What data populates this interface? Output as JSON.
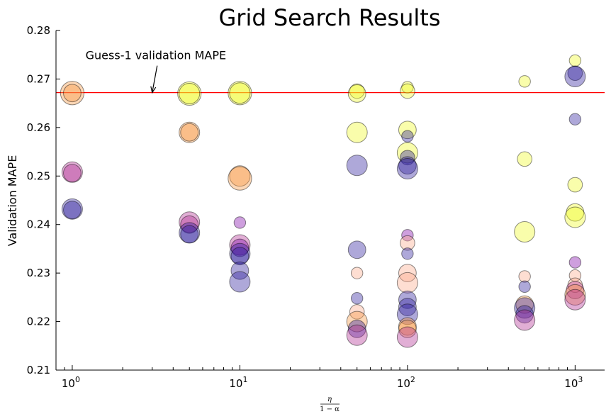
{
  "chart_data": {
    "type": "scatter",
    "title": "Grid Search Results",
    "ylabel": "Validation MAPE",
    "xlabel_num": "η",
    "xlabel_den": "1 − α",
    "xscale": "log",
    "xlim": [
      0.8,
      1500
    ],
    "ylim": [
      0.21,
      0.28
    ],
    "x_ticks": [
      {
        "value": 1,
        "base": "10",
        "exp": "0"
      },
      {
        "value": 10,
        "base": "10",
        "exp": "1"
      },
      {
        "value": 100,
        "base": "10",
        "exp": "2"
      },
      {
        "value": 1000,
        "base": "10",
        "exp": "3"
      }
    ],
    "y_ticks": [
      {
        "value": 0.21,
        "label": "0.21"
      },
      {
        "value": 0.22,
        "label": "0.22"
      },
      {
        "value": 0.23,
        "label": "0.23"
      },
      {
        "value": 0.24,
        "label": "0.24"
      },
      {
        "value": 0.25,
        "label": "0.25"
      },
      {
        "value": 0.26,
        "label": "0.26"
      },
      {
        "value": 0.27,
        "label": "0.27"
      },
      {
        "value": 0.28,
        "label": "0.28"
      }
    ],
    "reference_line": {
      "y": 0.2672,
      "color": "#ff0000"
    },
    "annotation": {
      "text": "Guess-1 validation MAPE",
      "text_x": 1.2,
      "text_y": 0.2748,
      "arrow_x": 3.0,
      "arrow_y": 0.2672
    },
    "colors": {
      "yellow": "#f0f921",
      "orange": "#f89540",
      "magenta": "#b12a90",
      "purple": "#7e03a8",
      "indigo": "#2a1b9a",
      "peach": "#fca98a"
    },
    "points": [
      {
        "x": 1,
        "y": 0.2671,
        "s": 3,
        "c": "orange"
      },
      {
        "x": 1,
        "y": 0.2671,
        "s": 2,
        "c": "orange"
      },
      {
        "x": 1,
        "y": 0.2508,
        "s": 2.5,
        "c": "magenta"
      },
      {
        "x": 1,
        "y": 0.2506,
        "s": 2,
        "c": "magenta"
      },
      {
        "x": 1,
        "y": 0.2432,
        "s": 2.5,
        "c": "indigo"
      },
      {
        "x": 1,
        "y": 0.243,
        "s": 2,
        "c": "indigo"
      },
      {
        "x": 5,
        "y": 0.267,
        "s": 3,
        "c": "yellow"
      },
      {
        "x": 5,
        "y": 0.267,
        "s": 2.5,
        "c": "yellow"
      },
      {
        "x": 5,
        "y": 0.259,
        "s": 2.5,
        "c": "orange"
      },
      {
        "x": 5,
        "y": 0.259,
        "s": 2,
        "c": "orange"
      },
      {
        "x": 5,
        "y": 0.2405,
        "s": 2.5,
        "c": "magenta"
      },
      {
        "x": 5,
        "y": 0.24,
        "s": 2,
        "c": "magenta"
      },
      {
        "x": 5,
        "y": 0.2383,
        "s": 2.5,
        "c": "indigo"
      },
      {
        "x": 5,
        "y": 0.238,
        "s": 2,
        "c": "indigo"
      },
      {
        "x": 10,
        "y": 0.2671,
        "s": 3,
        "c": "yellow"
      },
      {
        "x": 10,
        "y": 0.2671,
        "s": 2.5,
        "c": "yellow"
      },
      {
        "x": 10,
        "y": 0.25,
        "s": 2.5,
        "c": "orange"
      },
      {
        "x": 10,
        "y": 0.2495,
        "s": 3,
        "c": "orange"
      },
      {
        "x": 10,
        "y": 0.2404,
        "s": 1,
        "c": "purple"
      },
      {
        "x": 10,
        "y": 0.2358,
        "s": 2.5,
        "c": "magenta"
      },
      {
        "x": 10,
        "y": 0.2352,
        "s": 2,
        "c": "purple"
      },
      {
        "x": 10,
        "y": 0.234,
        "s": 2.5,
        "c": "indigo"
      },
      {
        "x": 10,
        "y": 0.2335,
        "s": 2,
        "c": "indigo"
      },
      {
        "x": 10,
        "y": 0.2305,
        "s": 2,
        "c": "indigo"
      },
      {
        "x": 10,
        "y": 0.2282,
        "s": 2.5,
        "c": "indigo"
      },
      {
        "x": 50,
        "y": 0.2675,
        "s": 1.5,
        "c": "yellow"
      },
      {
        "x": 50,
        "y": 0.267,
        "s": 2,
        "c": "yellow"
      },
      {
        "x": 50,
        "y": 0.259,
        "s": 2.5,
        "c": "yellow"
      },
      {
        "x": 50,
        "y": 0.2522,
        "s": 2.5,
        "c": "indigo"
      },
      {
        "x": 50,
        "y": 0.2348,
        "s": 2,
        "c": "indigo"
      },
      {
        "x": 50,
        "y": 0.23,
        "s": 1,
        "c": "peach"
      },
      {
        "x": 50,
        "y": 0.2248,
        "s": 1,
        "c": "indigo"
      },
      {
        "x": 50,
        "y": 0.222,
        "s": 1.5,
        "c": "peach"
      },
      {
        "x": 50,
        "y": 0.22,
        "s": 2.5,
        "c": "orange"
      },
      {
        "x": 50,
        "y": 0.2185,
        "s": 2,
        "c": "indigo"
      },
      {
        "x": 50,
        "y": 0.2172,
        "s": 2.5,
        "c": "magenta"
      },
      {
        "x": 100,
        "y": 0.2683,
        "s": 1,
        "c": "yellow"
      },
      {
        "x": 100,
        "y": 0.2675,
        "s": 1.5,
        "c": "yellow"
      },
      {
        "x": 100,
        "y": 0.2595,
        "s": 2,
        "c": "yellow"
      },
      {
        "x": 100,
        "y": 0.2582,
        "s": 1,
        "c": "indigo"
      },
      {
        "x": 100,
        "y": 0.2548,
        "s": 2.5,
        "c": "yellow"
      },
      {
        "x": 100,
        "y": 0.2538,
        "s": 1.5,
        "c": "indigo"
      },
      {
        "x": 100,
        "y": 0.2522,
        "s": 2,
        "c": "indigo"
      },
      {
        "x": 100,
        "y": 0.2515,
        "s": 2.5,
        "c": "indigo"
      },
      {
        "x": 100,
        "y": 0.2378,
        "s": 1,
        "c": "purple"
      },
      {
        "x": 100,
        "y": 0.2362,
        "s": 1.5,
        "c": "peach"
      },
      {
        "x": 100,
        "y": 0.234,
        "s": 1,
        "c": "indigo"
      },
      {
        "x": 100,
        "y": 0.23,
        "s": 2,
        "c": "peach"
      },
      {
        "x": 100,
        "y": 0.228,
        "s": 2.5,
        "c": "peach"
      },
      {
        "x": 100,
        "y": 0.2245,
        "s": 2,
        "c": "indigo"
      },
      {
        "x": 100,
        "y": 0.223,
        "s": 2,
        "c": "indigo"
      },
      {
        "x": 100,
        "y": 0.2215,
        "s": 2.5,
        "c": "indigo"
      },
      {
        "x": 100,
        "y": 0.219,
        "s": 2,
        "c": "orange"
      },
      {
        "x": 100,
        "y": 0.2185,
        "s": 2,
        "c": "orange"
      },
      {
        "x": 100,
        "y": 0.2168,
        "s": 2.5,
        "c": "magenta"
      },
      {
        "x": 500,
        "y": 0.2695,
        "s": 1,
        "c": "yellow"
      },
      {
        "x": 500,
        "y": 0.2535,
        "s": 1.5,
        "c": "yellow"
      },
      {
        "x": 500,
        "y": 0.2385,
        "s": 2.5,
        "c": "yellow"
      },
      {
        "x": 500,
        "y": 0.2293,
        "s": 1,
        "c": "peach"
      },
      {
        "x": 500,
        "y": 0.2272,
        "s": 1,
        "c": "indigo"
      },
      {
        "x": 500,
        "y": 0.2235,
        "s": 2,
        "c": "orange"
      },
      {
        "x": 500,
        "y": 0.2228,
        "s": 2.5,
        "c": "indigo"
      },
      {
        "x": 500,
        "y": 0.2215,
        "s": 2,
        "c": "indigo"
      },
      {
        "x": 500,
        "y": 0.2203,
        "s": 2.5,
        "c": "magenta"
      },
      {
        "x": 1000,
        "y": 0.2738,
        "s": 1,
        "c": "yellow"
      },
      {
        "x": 1000,
        "y": 0.2712,
        "s": 1.5,
        "c": "indigo"
      },
      {
        "x": 1000,
        "y": 0.2705,
        "s": 2.5,
        "c": "indigo"
      },
      {
        "x": 1000,
        "y": 0.2617,
        "s": 1,
        "c": "indigo"
      },
      {
        "x": 1000,
        "y": 0.2482,
        "s": 1.5,
        "c": "yellow"
      },
      {
        "x": 1000,
        "y": 0.2425,
        "s": 2,
        "c": "yellow"
      },
      {
        "x": 1000,
        "y": 0.2415,
        "s": 2.5,
        "c": "yellow"
      },
      {
        "x": 1000,
        "y": 0.2322,
        "s": 1,
        "c": "purple"
      },
      {
        "x": 1000,
        "y": 0.2295,
        "s": 1,
        "c": "peach"
      },
      {
        "x": 1000,
        "y": 0.2275,
        "s": 1.5,
        "c": "peach"
      },
      {
        "x": 1000,
        "y": 0.2265,
        "s": 2,
        "c": "magenta"
      },
      {
        "x": 1000,
        "y": 0.2255,
        "s": 2.5,
        "c": "orange"
      },
      {
        "x": 1000,
        "y": 0.2245,
        "s": 2.5,
        "c": "magenta"
      }
    ]
  }
}
